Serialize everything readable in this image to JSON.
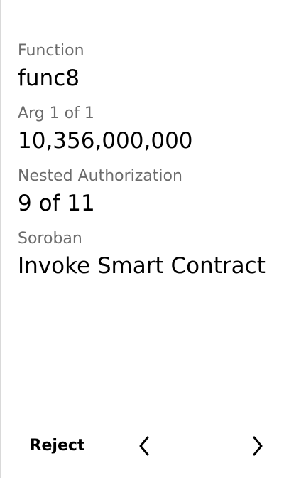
{
  "fields": [
    {
      "label": "Function",
      "value": "func8"
    },
    {
      "label": "Arg 1 of 1",
      "value": "10,356,000,000"
    },
    {
      "label": "Nested Authorization",
      "value": "9 of 11"
    },
    {
      "label": "Soroban",
      "value": "Invoke Smart Contract"
    }
  ],
  "footer": {
    "reject_label": "Reject",
    "prev_icon": "chevron-left-icon",
    "next_icon": "chevron-right-icon"
  }
}
